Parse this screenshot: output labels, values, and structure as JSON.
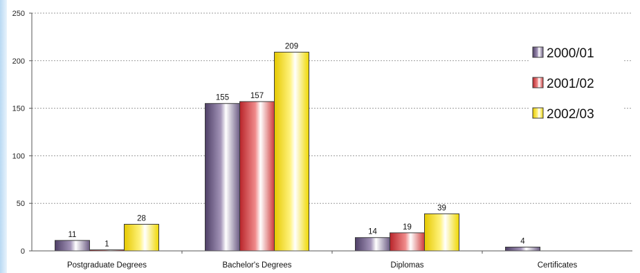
{
  "chart_data": {
    "type": "bar",
    "categories": [
      "Postgraduate Degrees",
      "Bachelor's Degrees",
      "Diplomas",
      "Certificates"
    ],
    "series": [
      {
        "name": "2000/01",
        "values": [
          11,
          155,
          14,
          4
        ],
        "color": "#7a6a8f"
      },
      {
        "name": "2001/02",
        "values": [
          1,
          157,
          19,
          null
        ],
        "color": "#d94b4b"
      },
      {
        "name": "2002/03",
        "values": [
          28,
          209,
          39,
          null
        ],
        "color": "#f3e51a"
      }
    ],
    "ylim": [
      0,
      250
    ],
    "yticks": [
      0,
      50,
      100,
      150,
      200,
      250
    ],
    "grid": true,
    "legend_position": "right"
  }
}
